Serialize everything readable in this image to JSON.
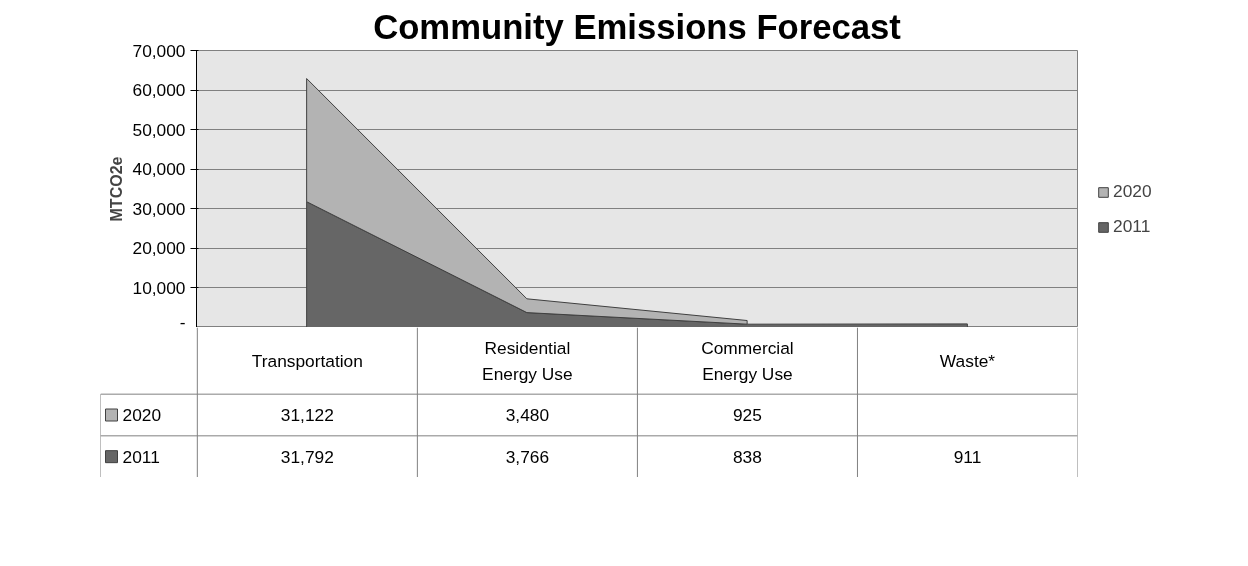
{
  "chart_data": {
    "type": "area",
    "title": "Community Emissions Forecast",
    "ylabel": "MTCO2e",
    "categories": [
      "Transportation",
      "Residential Energy Use",
      "Commercial Energy Use",
      "Waste*"
    ],
    "stacked": true,
    "series": [
      {
        "name": "2011",
        "color": "#666666",
        "values": [
          31792,
          3766,
          838,
          911
        ],
        "value_labels": [
          "31,792",
          "3,766",
          "838",
          "911"
        ]
      },
      {
        "name": "2020",
        "color": "#b3b3b3",
        "values": [
          31122,
          3480,
          925,
          null
        ],
        "value_labels": [
          "31,122",
          "3,480",
          "925",
          null
        ]
      }
    ],
    "ylim": [
      0,
      70000
    ],
    "yticks": [
      {
        "value": 0,
        "label": "-"
      },
      {
        "value": 10000,
        "label": "10,000"
      },
      {
        "value": 20000,
        "label": "20,000"
      },
      {
        "value": 30000,
        "label": "30,000"
      },
      {
        "value": 40000,
        "label": "40,000"
      },
      {
        "value": 50000,
        "label": "50,000"
      },
      {
        "value": 60000,
        "label": "60,000"
      },
      {
        "value": 70000,
        "label": "70,000"
      }
    ],
    "grid": "y",
    "legend": "right"
  }
}
